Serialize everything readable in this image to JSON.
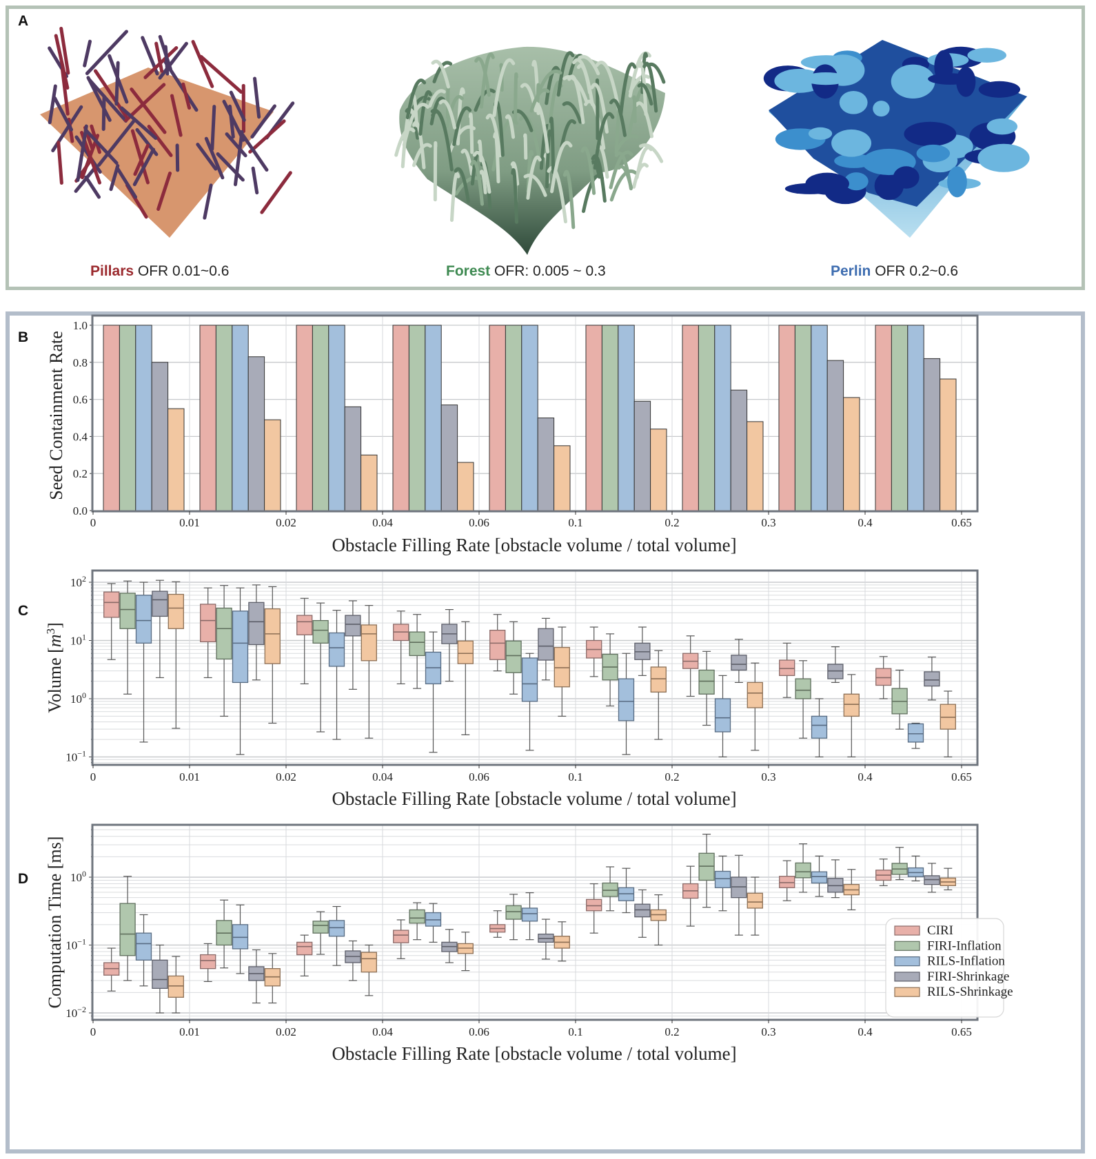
{
  "panel_a": {
    "letter": "A",
    "scenes": [
      {
        "name": "Pillars",
        "ofr": "OFR 0.01~0.6",
        "color": "#9b2a2e"
      },
      {
        "name": "Forest",
        "ofr": "OFR: 0.005 ~ 0.3",
        "color": "#3f8a52"
      },
      {
        "name": "Perlin",
        "ofr": "OFR 0.2~0.6",
        "color": "#3e6db0"
      }
    ]
  },
  "series_colors": {
    "CIRI": "#e8b0a9",
    "FIRI-Inflation": "#b0c7ad",
    "RILS-Inflation": "#a3bfdc",
    "FIRI-Shrinkage": "#a8abb8",
    "RILS-Shrinkage": "#f2c7a1"
  },
  "chart_data": [
    {
      "panel": "B",
      "type": "bar",
      "title": "",
      "xlabel": "Obstacle Filling Rate [obstacle volume / total volume]",
      "ylabel": "Seed Containment Rate",
      "ylim": [
        0.0,
        1.0
      ],
      "yticks": [
        "0.0",
        "0.2",
        "0.4",
        "0.6",
        "0.8",
        "1.0"
      ],
      "xticks": [
        "0",
        "0.01",
        "0.02",
        "0.04",
        "0.06",
        "0.1",
        "0.2",
        "0.3",
        "0.4",
        "0.65"
      ],
      "grid": true,
      "categories": [
        "0-0.01",
        "0.01-0.02",
        "0.02-0.04",
        "0.04-0.06",
        "0.06-0.1",
        "0.1-0.2",
        "0.2-0.3",
        "0.3-0.4",
        "0.4-0.65"
      ],
      "series": [
        {
          "name": "CIRI",
          "values": [
            1.0,
            1.0,
            1.0,
            1.0,
            1.0,
            1.0,
            1.0,
            1.0,
            1.0
          ]
        },
        {
          "name": "FIRI-Inflation",
          "values": [
            1.0,
            1.0,
            1.0,
            1.0,
            1.0,
            1.0,
            1.0,
            1.0,
            1.0
          ]
        },
        {
          "name": "RILS-Inflation",
          "values": [
            1.0,
            1.0,
            1.0,
            1.0,
            1.0,
            1.0,
            1.0,
            1.0,
            1.0
          ]
        },
        {
          "name": "FIRI-Shrinkage",
          "values": [
            0.8,
            0.83,
            0.56,
            0.57,
            0.5,
            0.59,
            0.65,
            0.81,
            0.82
          ]
        },
        {
          "name": "RILS-Shrinkage",
          "values": [
            0.55,
            0.49,
            0.3,
            0.26,
            0.35,
            0.44,
            0.48,
            0.61,
            0.71
          ]
        }
      ]
    },
    {
      "panel": "C",
      "type": "box",
      "xlabel": "Obstacle Filling Rate [obstacle volume / total volume]",
      "ylabel": "Volume [m^3]",
      "yscale": "log",
      "ylim": [
        0.07,
        150
      ],
      "yticks": [
        "10^2",
        "10^1",
        "10^0",
        "10^-1"
      ],
      "xticks": [
        "0",
        "0.01",
        "0.02",
        "0.04",
        "0.06",
        "0.1",
        "0.2",
        "0.3",
        "0.4",
        "0.65"
      ],
      "grid": true,
      "categories": [
        "0-0.01",
        "0.01-0.02",
        "0.02-0.04",
        "0.04-0.06",
        "0.06-0.1",
        "0.1-0.2",
        "0.2-0.3",
        "0.3-0.4",
        "0.4-0.65"
      ],
      "series": [
        {
          "name": "CIRI",
          "boxes": [
            [
              4.7,
              25,
              45,
              68,
              95
            ],
            [
              2.3,
              9.5,
              22,
              42,
              80
            ],
            [
              1.8,
              12.5,
              21,
              27,
              53
            ],
            [
              1.8,
              10,
              14,
              19,
              32
            ],
            [
              3,
              4.7,
              9,
              15,
              28
            ],
            [
              2.4,
              5,
              7,
              10,
              17
            ],
            [
              1.1,
              3.3,
              4.4,
              6,
              12
            ],
            [
              1.05,
              2.5,
              3.3,
              4.6,
              9
            ],
            [
              1.0,
              1.7,
              2.3,
              3.3,
              5.3
            ]
          ]
        },
        {
          "name": "FIRI-Inflation",
          "boxes": [
            [
              1.2,
              16,
              34,
              65,
              105
            ],
            [
              0.5,
              4.8,
              16,
              36,
              88
            ],
            [
              0.27,
              9,
              15,
              22,
              44
            ],
            [
              1.5,
              5.5,
              9.3,
              14,
              28
            ],
            [
              1.2,
              2.8,
              5.5,
              9.8,
              21
            ],
            [
              0.75,
              2.1,
              3.5,
              5.8,
              13
            ],
            [
              0.35,
              1.2,
              2,
              3.1,
              6.5
            ],
            [
              0.21,
              1.0,
              1.4,
              2.2,
              4.5
            ],
            [
              0.3,
              0.55,
              0.9,
              1.5,
              3.1
            ]
          ]
        },
        {
          "name": "RILS-Inflation",
          "boxes": [
            [
              0.18,
              9,
              22,
              60,
              100
            ],
            [
              0.11,
              1.9,
              9,
              32,
              80
            ],
            [
              0.2,
              3.6,
              7.5,
              13.5,
              33
            ],
            [
              0.12,
              1.8,
              3.4,
              6.3,
              14
            ],
            [
              0.13,
              0.9,
              1.8,
              5,
              6
            ],
            [
              0.11,
              0.42,
              0.9,
              2.2,
              6
            ],
            [
              0.1,
              0.27,
              0.47,
              1.0,
              2.5
            ],
            [
              0.1,
              0.21,
              0.35,
              0.5,
              1.0
            ],
            [
              0.14,
              0.18,
              0.25,
              0.37,
              0.38
            ]
          ]
        },
        {
          "name": "FIRI-Shrinkage",
          "boxes": [
            [
              2.3,
              26,
              50,
              70,
              108
            ],
            [
              2.1,
              8.5,
              21,
              45,
              90
            ],
            [
              1.45,
              12,
              19,
              27,
              48
            ],
            [
              2,
              8.8,
              13,
              19,
              34
            ],
            [
              2.1,
              4.6,
              8,
              16,
              24
            ],
            [
              2.5,
              4.7,
              6.4,
              9,
              17
            ],
            [
              1.9,
              3.1,
              3.9,
              5.6,
              10.5
            ],
            [
              1.9,
              2.2,
              3.0,
              3.9,
              7.8
            ],
            [
              0.95,
              1.65,
              2.1,
              2.9,
              5.2
            ]
          ]
        },
        {
          "name": "RILS-Shrinkage",
          "boxes": [
            [
              0.31,
              16,
              36,
              62,
              102
            ],
            [
              0.38,
              4,
              13,
              35,
              84
            ],
            [
              0.21,
              4.5,
              13,
              18.5,
              40
            ],
            [
              0.24,
              4,
              6,
              9.8,
              21
            ],
            [
              0.5,
              1.6,
              3.4,
              7.6,
              17
            ],
            [
              0.2,
              1.3,
              2.2,
              3.5,
              6.7
            ],
            [
              0.13,
              0.7,
              1.25,
              1.9,
              4.1
            ],
            [
              0.1,
              0.5,
              0.8,
              1.2,
              2.6
            ],
            [
              0.1,
              0.3,
              0.48,
              0.8,
              1.35
            ]
          ]
        }
      ]
    },
    {
      "panel": "D",
      "type": "box",
      "xlabel": "Obstacle Filling Rate [obstacle volume / total volume]",
      "ylabel": "Computation Time [ms]",
      "yscale": "log",
      "ylim": [
        0.0075,
        5.5
      ],
      "yticks": [
        "10^0",
        "10^-1",
        "10^-2"
      ],
      "xticks": [
        "0",
        "0.01",
        "0.02",
        "0.04",
        "0.06",
        "0.1",
        "0.2",
        "0.3",
        "0.4",
        "0.65"
      ],
      "grid": true,
      "legend": {
        "position": "lower-right",
        "entries": [
          "CIRI",
          "FIRI-Inflation",
          "RILS-Inflation",
          "FIRI-Shrinkage",
          "RILS-Shrinkage"
        ]
      },
      "categories": [
        "0-0.01",
        "0.01-0.02",
        "0.02-0.04",
        "0.04-0.06",
        "0.06-0.1",
        "0.1-0.2",
        "0.2-0.3",
        "0.3-0.4",
        "0.4-0.65"
      ],
      "series": [
        {
          "name": "CIRI",
          "boxes": [
            [
              0.021,
              0.036,
              0.045,
              0.055,
              0.09
            ],
            [
              0.029,
              0.045,
              0.059,
              0.072,
              0.105
            ],
            [
              0.035,
              0.072,
              0.095,
              0.11,
              0.14
            ],
            [
              0.063,
              0.108,
              0.14,
              0.165,
              0.235
            ],
            [
              0.13,
              0.155,
              0.175,
              0.2,
              0.32
            ],
            [
              0.15,
              0.32,
              0.38,
              0.47,
              0.8
            ],
            [
              0.19,
              0.49,
              0.63,
              0.8,
              1.45
            ],
            [
              0.45,
              0.7,
              0.83,
              1.03,
              1.75
            ],
            [
              0.75,
              0.9,
              1.07,
              1.27,
              1.85
            ]
          ]
        },
        {
          "name": "FIRI-Inflation",
          "boxes": [
            [
              0.03,
              0.07,
              0.145,
              0.41,
              1.03
            ],
            [
              0.046,
              0.1,
              0.15,
              0.23,
              0.46
            ],
            [
              0.073,
              0.15,
              0.195,
              0.225,
              0.31
            ],
            [
              0.12,
              0.21,
              0.25,
              0.33,
              0.42
            ],
            [
              0.12,
              0.24,
              0.31,
              0.38,
              0.56
            ],
            [
              0.32,
              0.52,
              0.64,
              0.82,
              1.42
            ],
            [
              0.36,
              0.9,
              1.45,
              2.25,
              4.3
            ],
            [
              0.6,
              0.98,
              1.2,
              1.62,
              3.1
            ],
            [
              0.92,
              1.1,
              1.32,
              1.6,
              2.75
            ]
          ]
        },
        {
          "name": "RILS-Inflation",
          "boxes": [
            [
              0.025,
              0.06,
              0.105,
              0.15,
              0.28
            ],
            [
              0.038,
              0.088,
              0.13,
              0.2,
              0.39
            ],
            [
              0.05,
              0.135,
              0.18,
              0.23,
              0.37
            ],
            [
              0.11,
              0.19,
              0.235,
              0.3,
              0.41
            ],
            [
              0.12,
              0.225,
              0.29,
              0.35,
              0.59
            ],
            [
              0.3,
              0.45,
              0.57,
              0.7,
              1.35
            ],
            [
              0.32,
              0.7,
              0.95,
              1.22,
              2.05
            ],
            [
              0.52,
              0.82,
              1.02,
              1.2,
              2.05
            ],
            [
              0.88,
              1.02,
              1.17,
              1.37,
              2.05
            ]
          ]
        },
        {
          "name": "FIRI-Shrinkage",
          "boxes": [
            [
              0.01,
              0.023,
              0.031,
              0.06,
              0.1
            ],
            [
              0.014,
              0.03,
              0.038,
              0.048,
              0.085
            ],
            [
              0.03,
              0.055,
              0.068,
              0.082,
              0.115
            ],
            [
              0.055,
              0.08,
              0.095,
              0.11,
              0.17
            ],
            [
              0.062,
              0.11,
              0.125,
              0.145,
              0.24
            ],
            [
              0.13,
              0.26,
              0.33,
              0.4,
              0.65
            ],
            [
              0.14,
              0.5,
              0.72,
              1.0,
              2.1
            ],
            [
              0.5,
              0.6,
              0.75,
              0.96,
              1.8
            ],
            [
              0.6,
              0.78,
              0.92,
              1.05,
              1.6
            ]
          ]
        },
        {
          "name": "RILS-Shrinkage",
          "boxes": [
            [
              0.01,
              0.017,
              0.025,
              0.035,
              0.068
            ],
            [
              0.014,
              0.025,
              0.034,
              0.045,
              0.075
            ],
            [
              0.018,
              0.04,
              0.063,
              0.078,
              0.1
            ],
            [
              0.042,
              0.075,
              0.09,
              0.105,
              0.155
            ],
            [
              0.058,
              0.09,
              0.11,
              0.135,
              0.22
            ],
            [
              0.1,
              0.23,
              0.28,
              0.33,
              0.55
            ],
            [
              0.14,
              0.35,
              0.43,
              0.58,
              1.0
            ],
            [
              0.33,
              0.55,
              0.65,
              0.78,
              1.3
            ],
            [
              0.65,
              0.75,
              0.85,
              0.97,
              1.35
            ]
          ]
        }
      ]
    }
  ],
  "labels": {
    "b_letter": "B",
    "c_letter": "C",
    "d_letter": "D"
  }
}
